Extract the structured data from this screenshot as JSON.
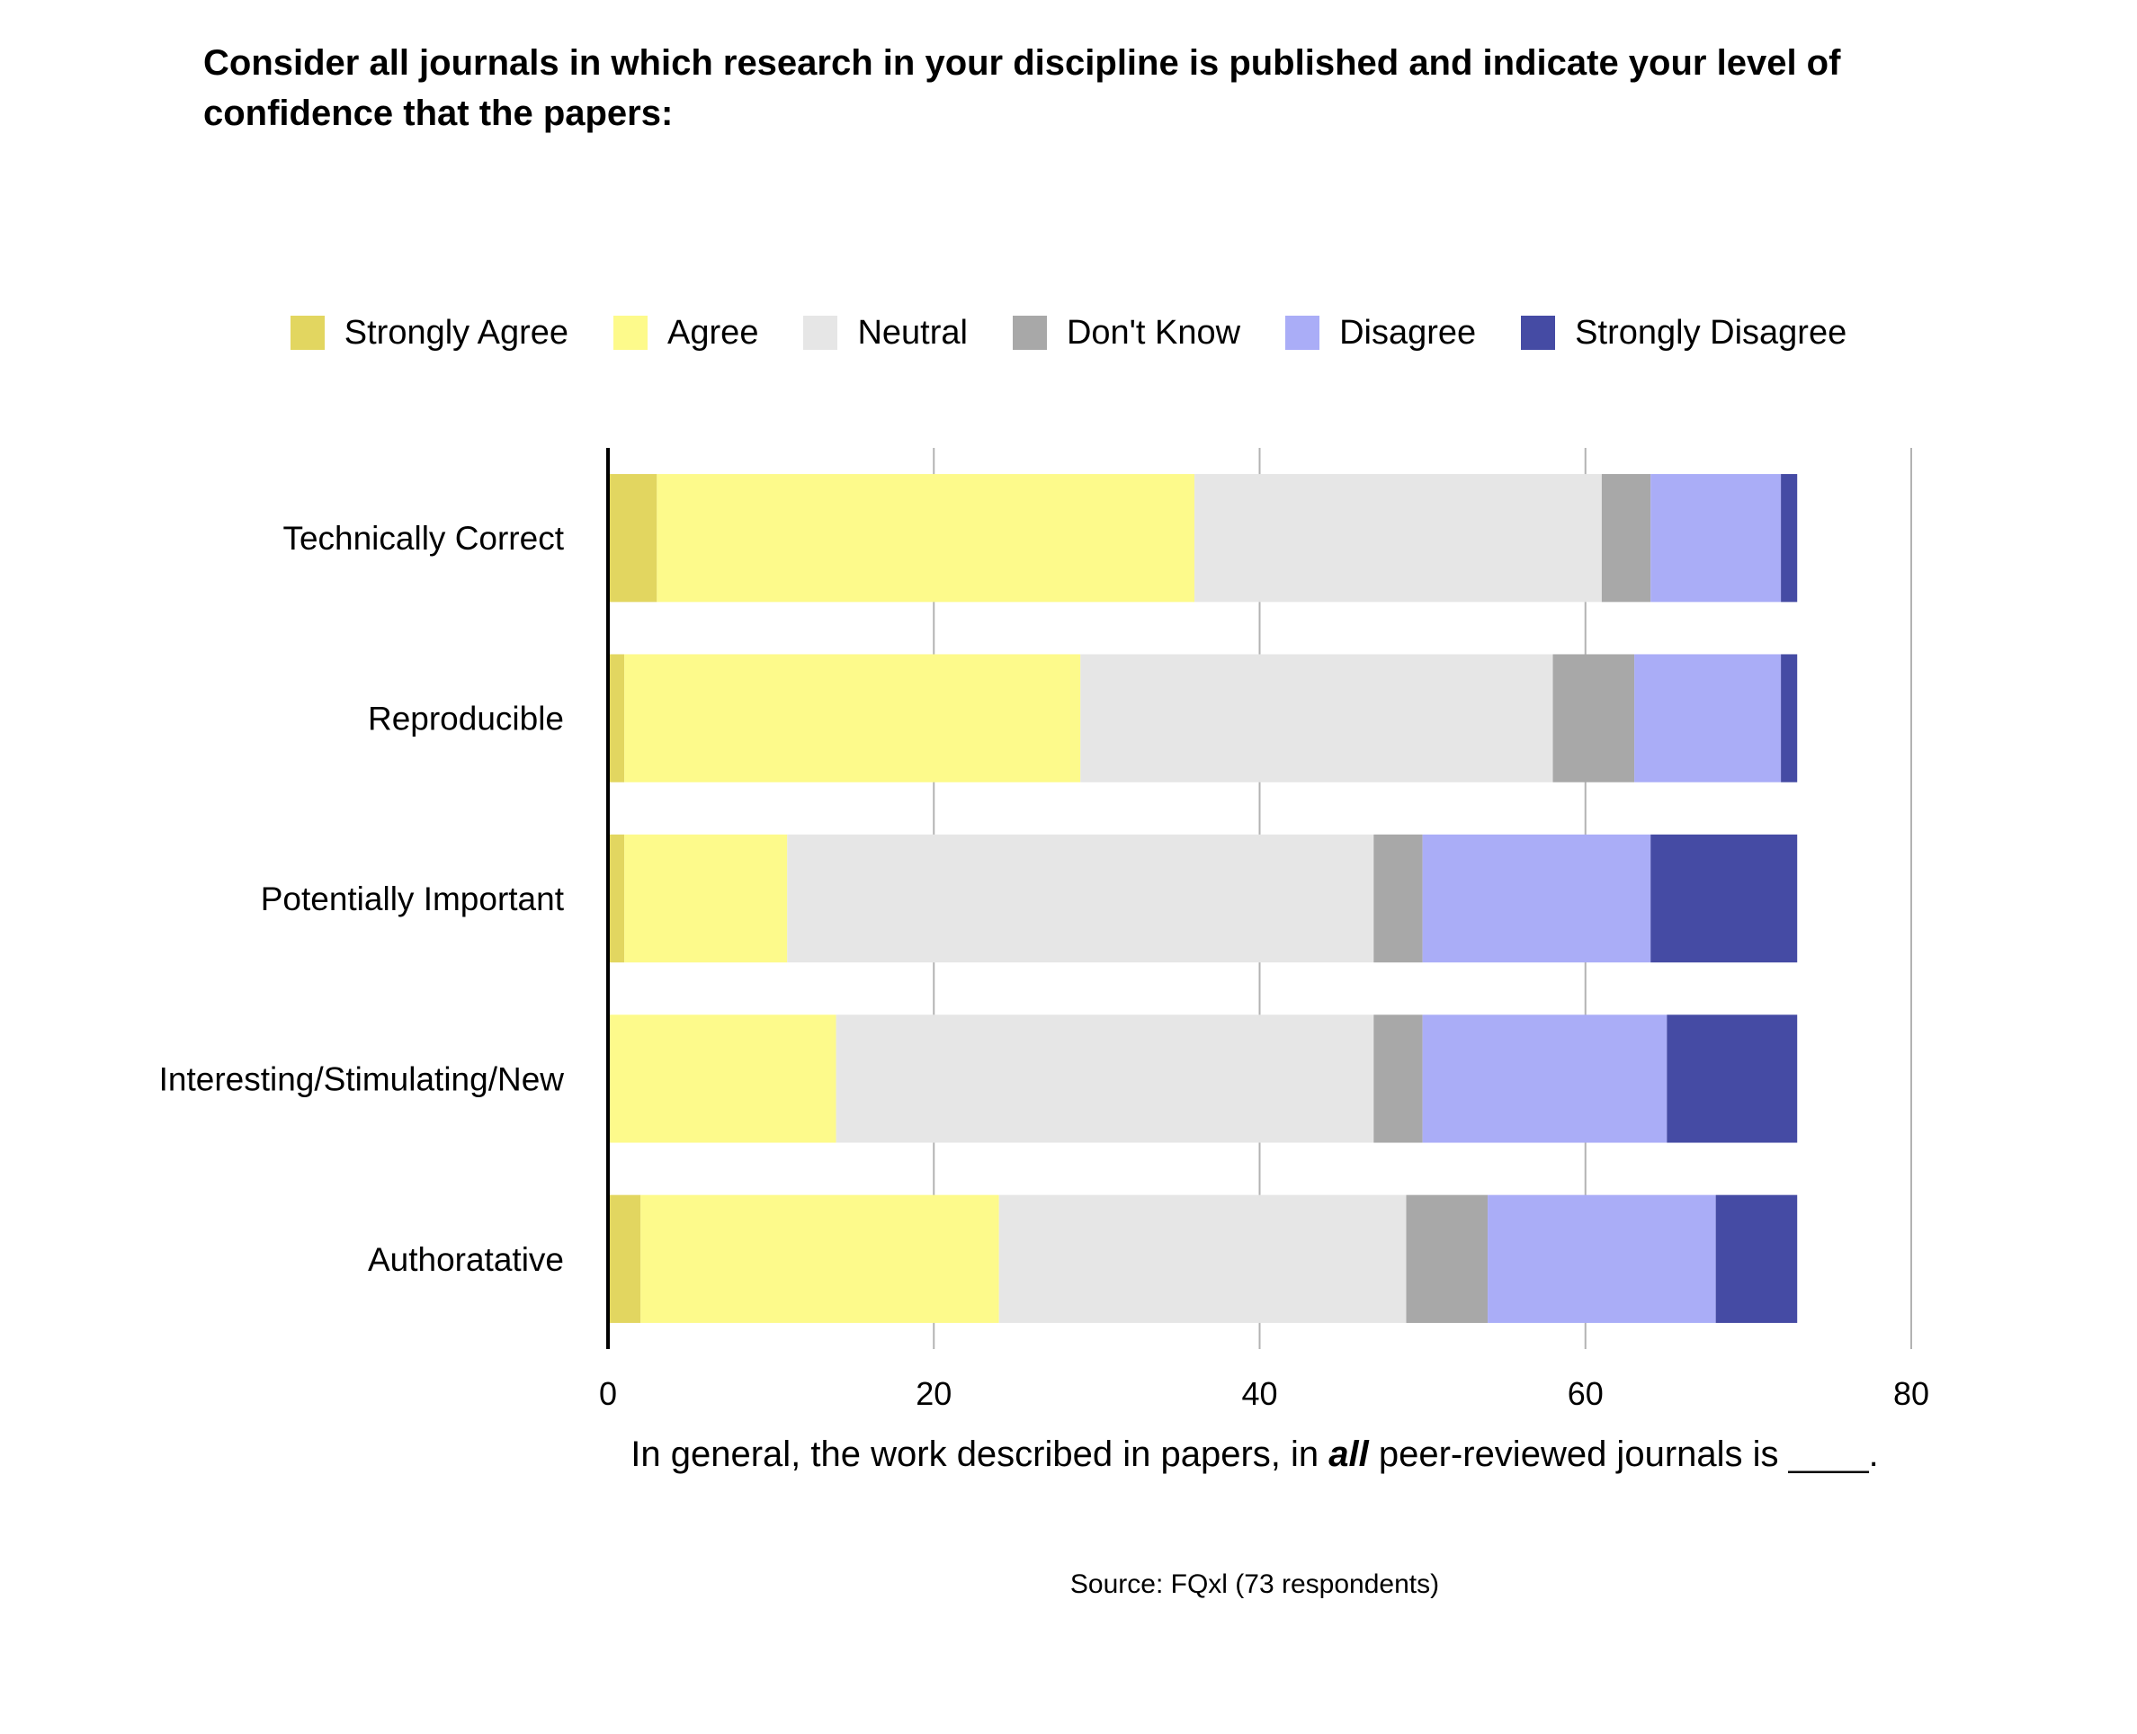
{
  "chart_data": {
    "type": "bar",
    "orientation": "horizontal",
    "stacked": true,
    "title": "Consider all journals in which research in your discipline is published and indicate your level of confidence that the papers:",
    "xlabel": {
      "before": "In general, the work described in papers, in ",
      "emphasis": "all",
      "after": " peer-reviewed journals is ____."
    },
    "source": "Source: FQxl (73 respondents)",
    "xlim": [
      0,
      80
    ],
    "xticks": [
      0,
      20,
      40,
      60,
      80
    ],
    "grid": true,
    "legend_position": "top",
    "categories": [
      "Technically Correct",
      "Reproducible",
      "Potentially Important",
      "Interesting/Stimulating/New",
      "Authoratative"
    ],
    "series": [
      {
        "name": "Strongly Agree",
        "color": "#e2d660",
        "values": [
          3,
          1,
          1,
          0,
          2
        ]
      },
      {
        "name": "Agree",
        "color": "#fdfa8b",
        "values": [
          33,
          28,
          10,
          14,
          22
        ]
      },
      {
        "name": "Neutral",
        "color": "#e6e6e6",
        "values": [
          25,
          29,
          36,
          33,
          25
        ]
      },
      {
        "name": "Don't Know",
        "color": "#a8a8a8",
        "values": [
          3,
          5,
          3,
          3,
          5
        ]
      },
      {
        "name": "Disagree",
        "color": "#aaadf7",
        "values": [
          8,
          9,
          14,
          15,
          14
        ]
      },
      {
        "name": "Strongly Disagree",
        "color": "#454ba4",
        "values": [
          1,
          1,
          9,
          8,
          5
        ]
      }
    ]
  }
}
